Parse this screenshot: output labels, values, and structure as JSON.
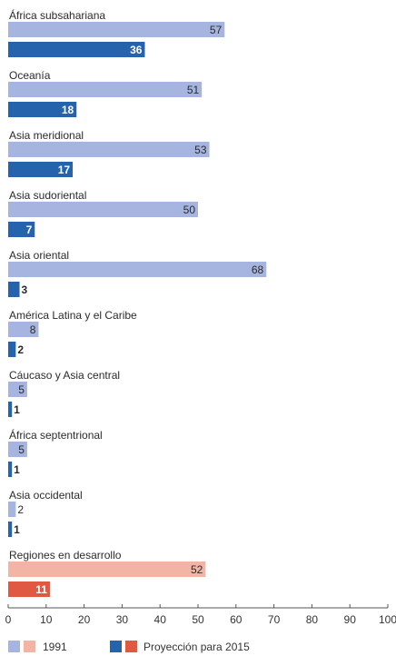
{
  "chart_data": {
    "type": "bar",
    "orientation": "horizontal",
    "categories": [
      "África subsahariana",
      "Oceanía",
      "Asia meridional",
      "Asia sudoriental",
      "Asia oriental",
      "América Latina y el Caribe",
      "Cáucaso y Asia central",
      "África septentrional",
      "Asia occidental",
      "Regiones en desarrollo"
    ],
    "series": [
      {
        "name": "1991",
        "values": [
          57,
          51,
          53,
          50,
          68,
          8,
          5,
          5,
          2,
          52
        ]
      },
      {
        "name": "Proyección para 2015",
        "values": [
          36,
          18,
          17,
          7,
          3,
          2,
          1,
          1,
          1,
          11
        ]
      }
    ],
    "highlight_category": "Regiones en desarrollo",
    "xlim": [
      0,
      100
    ],
    "xticks": [
      0,
      10,
      20,
      30,
      40,
      50,
      60,
      70,
      80,
      90,
      100
    ],
    "grid": false,
    "legend_position": "bottom-left",
    "colors": {
      "s1991": "#a6b4e0",
      "s2015": "#2563ad",
      "s1991_highlight": "#f2b4a4",
      "s2015_highlight": "#e05a43",
      "axis": "#555555",
      "text": "#2b2b2b"
    }
  }
}
